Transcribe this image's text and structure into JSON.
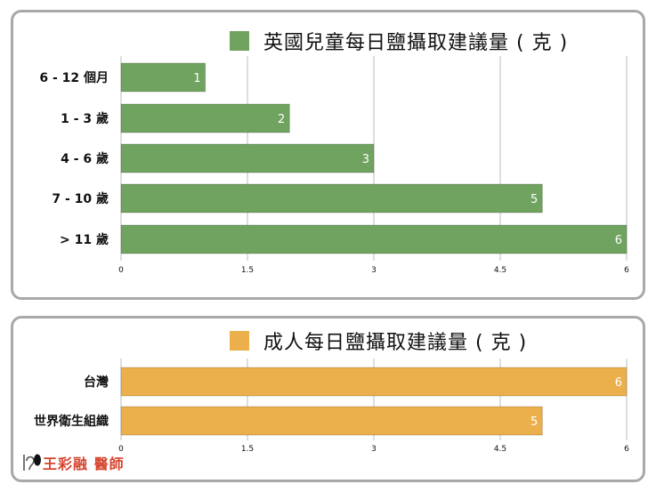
{
  "chart_data": [
    {
      "type": "bar",
      "orientation": "horizontal",
      "title": "英國兒童每日鹽攝取建議量 ( 克 )",
      "categories": [
        "6 - 12 個月",
        "1 - 3 歲",
        "4 - 6 歲",
        "7 - 10 歲",
        "> 11 歲"
      ],
      "values": [
        1,
        2,
        3,
        5,
        6
      ],
      "ticks": [
        "0",
        "1.5",
        "3",
        "4.5",
        "6"
      ],
      "xlim": [
        0,
        6
      ],
      "grid": true,
      "legend": "top-right",
      "color": "#70a35f"
    },
    {
      "type": "bar",
      "orientation": "horizontal",
      "title": "成人每日鹽攝取建議量 ( 克 )",
      "categories": [
        "台灣",
        "世界衛生組織"
      ],
      "values": [
        6,
        5
      ],
      "ticks": [
        "0",
        "1.5",
        "3",
        "4.5",
        "6"
      ],
      "xlim": [
        0,
        6
      ],
      "grid": true,
      "legend": "top-right",
      "color": "#ebb04c"
    }
  ],
  "credit": {
    "text": "王彩融 醫師",
    "icon": "ear-icon"
  }
}
